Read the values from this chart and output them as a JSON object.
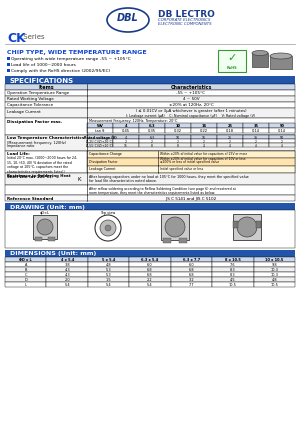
{
  "title": "CK Series",
  "subtitle": "CHIP TYPE, WIDE TEMPERATURE RANGE",
  "company": "DB LECTRO",
  "logo_text": "DBL",
  "features": [
    "Operating with wide temperature range -55 ~ +105°C",
    "Load life of 1000~2000 hours",
    "Comply with the RoHS directive (2002/95/EC)"
  ],
  "df_table": {
    "headers": [
      "WV",
      "4",
      "6.3",
      "10",
      "16",
      "25",
      "35",
      "50"
    ],
    "values": [
      "tan δ",
      "0.45",
      "0.35",
      "0.32",
      "0.22",
      "0.18",
      "0.14",
      "0.14"
    ]
  },
  "low_temp_table": {
    "headers": [
      "Rated voltage (V)",
      "4",
      "6.3",
      "10",
      "16",
      "25",
      "35",
      "50"
    ],
    "row1_cond": "Z(-25°C)/Z(+20°C)",
    "row1_vals": [
      "2",
      "2",
      "2",
      "2",
      "2",
      "2",
      "2"
    ],
    "row2_cond": "Z(-55°C)/Z(+20°C)",
    "row2_vals": [
      "15",
      "8",
      "8",
      "4",
      "4",
      "4",
      "4"
    ]
  },
  "dim_table": {
    "headers": [
      "ΦD x L",
      "4 x 5.4",
      "5 x 5.4",
      "6.3 x 5.4",
      "6.3 x 7.7",
      "8 x 10.5",
      "10 x 10.5"
    ],
    "rows": [
      [
        "A",
        "3.8",
        "4.8",
        "6.0",
        "6.0",
        "7.6",
        "9.8"
      ],
      [
        "B",
        "4.3",
        "5.3",
        "6.8",
        "6.8",
        "8.3",
        "10.3"
      ],
      [
        "C",
        "4.3",
        "5.3",
        "6.8",
        "6.8",
        "8.3",
        "10.3"
      ],
      [
        "D",
        "2.0",
        "1.5",
        "2.2",
        "3.2",
        "4.5",
        "4.8"
      ],
      [
        "L",
        "5.4",
        "5.4",
        "5.4",
        "7.7",
        "10.5",
        "10.5"
      ]
    ]
  },
  "header_bg": "#2255aa",
  "blue_text": "#1144cc",
  "dark_blue": "#1a3a8a"
}
